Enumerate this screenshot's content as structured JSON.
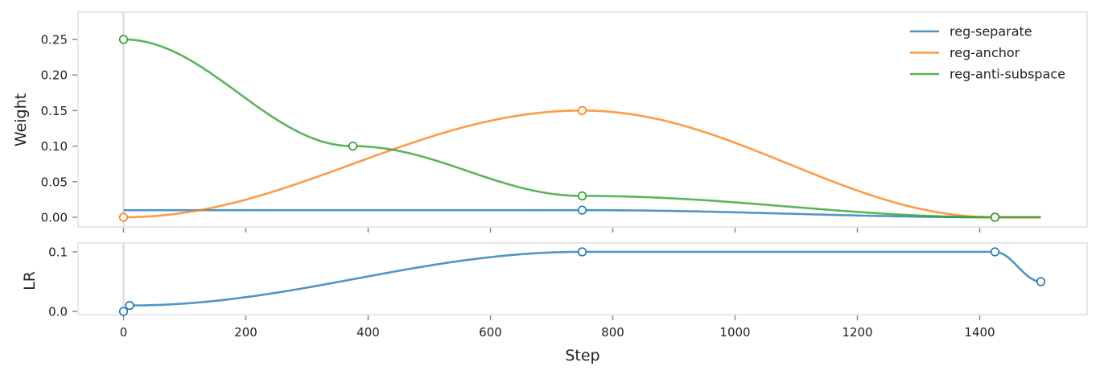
{
  "chart_data": [
    {
      "type": "line",
      "ylabel": "Weight",
      "ylim": [
        -0.014,
        0.29
      ],
      "yticks": [
        "0.00",
        "0.05",
        "0.10",
        "0.15",
        "0.20",
        "0.25"
      ],
      "legend_position": "top-right",
      "grid": false,
      "series": [
        {
          "name": "reg-separate",
          "color": "#1f77b4",
          "points": [
            [
              0,
              0.01
            ],
            [
              750,
              0.01
            ],
            [
              1425,
              0
            ],
            [
              1500,
              0
            ]
          ],
          "markers": [
            750,
            1425
          ]
        },
        {
          "name": "reg-anchor",
          "color": "#ff7f0e",
          "points": [
            [
              0,
              0
            ],
            [
              750,
              0.15
            ],
            [
              1425,
              0
            ],
            [
              1500,
              0
            ]
          ],
          "markers": [
            0,
            750,
            1425
          ]
        },
        {
          "name": "reg-anti-subspace",
          "color": "#2ca02c",
          "points": [
            [
              0,
              0.25
            ],
            [
              375,
              0.1
            ],
            [
              750,
              0.03
            ],
            [
              1425,
              0
            ],
            [
              1500,
              0
            ]
          ],
          "markers": [
            0,
            375,
            750,
            1425
          ]
        }
      ]
    },
    {
      "type": "line",
      "ylabel": "LR",
      "xlabel": "Step",
      "ylim": [
        -0.005,
        0.115
      ],
      "yticks": [
        "0.0",
        "0.1"
      ],
      "grid": false,
      "xlim": [
        -90,
        1575
      ],
      "xticks": [
        "0",
        "200",
        "400",
        "600",
        "800",
        "1000",
        "1200",
        "1400"
      ],
      "series": [
        {
          "color": "#1f77b4",
          "points": [
            [
              0,
              0
            ],
            [
              10,
              0.01
            ],
            [
              750,
              0.1
            ],
            [
              1425,
              0.1
            ],
            [
              1500,
              0.05
            ]
          ],
          "markers": [
            0,
            10,
            750,
            1425,
            1500
          ]
        }
      ]
    }
  ]
}
